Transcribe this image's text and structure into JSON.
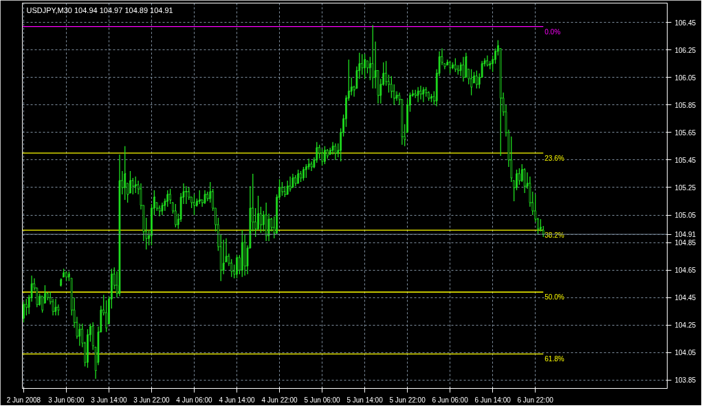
{
  "chart_data": {
    "type": "candlestick",
    "title": "USDJPY,M30  104.94 104.97 104.89 104.91",
    "color": "#20e020",
    "x": [
      "2008-06-02T22:00",
      "2008-06-02T22:30",
      "2008-06-02T23:00",
      "2008-06-02T23:30",
      "2008-06-03T00:00",
      "2008-06-03T00:30",
      "2008-06-03T01:00",
      "2008-06-03T01:30",
      "2008-06-03T02:00",
      "2008-06-03T02:30",
      "2008-06-03T03:00",
      "2008-06-03T03:30",
      "2008-06-03T04:00",
      "2008-06-03T04:30",
      "2008-06-03T05:00",
      "2008-06-03T05:30",
      "2008-06-03T06:00",
      "2008-06-03T06:30",
      "2008-06-03T07:00",
      "2008-06-03T07:30",
      "2008-06-03T08:00",
      "2008-06-03T08:30",
      "2008-06-03T09:00",
      "2008-06-03T09:30",
      "2008-06-03T10:00",
      "2008-06-03T10:30",
      "2008-06-03T11:00",
      "2008-06-03T11:30",
      "2008-06-03T12:00",
      "2008-06-03T12:30",
      "2008-06-03T13:00",
      "2008-06-03T13:30",
      "2008-06-03T14:00",
      "2008-06-03T14:30",
      "2008-06-03T15:00",
      "2008-06-03T15:30",
      "2008-06-03T16:00",
      "2008-06-03T16:30",
      "2008-06-03T17:00",
      "2008-06-03T17:30",
      "2008-06-03T18:00",
      "2008-06-03T18:30",
      "2008-06-03T19:00",
      "2008-06-03T19:30",
      "2008-06-03T20:00",
      "2008-06-03T20:30",
      "2008-06-03T21:00",
      "2008-06-03T21:30",
      "2008-06-03T22:00",
      "2008-06-03T22:30",
      "2008-06-03T23:00",
      "2008-06-03T23:30",
      "2008-06-04T00:00",
      "2008-06-04T00:30",
      "2008-06-04T01:00",
      "2008-06-04T01:30",
      "2008-06-04T02:00",
      "2008-06-04T02:30",
      "2008-06-04T03:00",
      "2008-06-04T03:30",
      "2008-06-04T04:00",
      "2008-06-04T04:30",
      "2008-06-04T05:00",
      "2008-06-04T05:30",
      "2008-06-04T06:00",
      "2008-06-04T06:30",
      "2008-06-04T07:00",
      "2008-06-04T07:30",
      "2008-06-04T08:00",
      "2008-06-04T08:30",
      "2008-06-04T09:00",
      "2008-06-04T09:30",
      "2008-06-04T10:00",
      "2008-06-04T10:30",
      "2008-06-04T11:00",
      "2008-06-04T11:30",
      "2008-06-04T12:00",
      "2008-06-04T12:30",
      "2008-06-04T13:00",
      "2008-06-04T13:30",
      "2008-06-04T14:00",
      "2008-06-04T14:30",
      "2008-06-04T15:00",
      "2008-06-04T15:30",
      "2008-06-04T16:00",
      "2008-06-04T16:30",
      "2008-06-04T17:00",
      "2008-06-04T17:30",
      "2008-06-04T18:00",
      "2008-06-04T18:30",
      "2008-06-04T19:00",
      "2008-06-04T19:30",
      "2008-06-04T20:00",
      "2008-06-04T20:30",
      "2008-06-04T21:00",
      "2008-06-04T21:30",
      "2008-06-04T22:00",
      "2008-06-04T22:30",
      "2008-06-04T23:00",
      "2008-06-04T23:30",
      "2008-06-05T00:00",
      "2008-06-05T00:30",
      "2008-06-05T01:00",
      "2008-06-05T01:30",
      "2008-06-05T02:00",
      "2008-06-05T02:30",
      "2008-06-05T03:00",
      "2008-06-05T03:30",
      "2008-06-05T04:00",
      "2008-06-05T04:30",
      "2008-06-05T05:00",
      "2008-06-05T05:30",
      "2008-06-05T06:00",
      "2008-06-05T06:30",
      "2008-06-05T07:00",
      "2008-06-05T07:30",
      "2008-06-05T08:00",
      "2008-06-05T08:30",
      "2008-06-05T09:00",
      "2008-06-05T09:30",
      "2008-06-05T10:00",
      "2008-06-05T10:30",
      "2008-06-05T11:00",
      "2008-06-05T11:30",
      "2008-06-05T12:00",
      "2008-06-05T12:30",
      "2008-06-05T13:00",
      "2008-06-05T13:30",
      "2008-06-05T14:00",
      "2008-06-05T14:30",
      "2008-06-05T15:00",
      "2008-06-05T15:30",
      "2008-06-05T16:00",
      "2008-06-05T16:30",
      "2008-06-05T17:00",
      "2008-06-05T17:30",
      "2008-06-05T18:00",
      "2008-06-05T18:30",
      "2008-06-05T19:00",
      "2008-06-05T19:30",
      "2008-06-05T20:00",
      "2008-06-05T20:30",
      "2008-06-05T21:00",
      "2008-06-05T21:30",
      "2008-06-05T22:00",
      "2008-06-05T22:30",
      "2008-06-05T23:00",
      "2008-06-05T23:30",
      "2008-06-06T00:00",
      "2008-06-06T00:30",
      "2008-06-06T01:00",
      "2008-06-06T01:30",
      "2008-06-06T02:00",
      "2008-06-06T02:30",
      "2008-06-06T03:00",
      "2008-06-06T03:30",
      "2008-06-06T04:00",
      "2008-06-06T04:30",
      "2008-06-06T05:00",
      "2008-06-06T05:30",
      "2008-06-06T06:00",
      "2008-06-06T06:30",
      "2008-06-06T07:00",
      "2008-06-06T07:30",
      "2008-06-06T08:00",
      "2008-06-06T08:30",
      "2008-06-06T09:00",
      "2008-06-06T09:30",
      "2008-06-06T10:00",
      "2008-06-06T10:30",
      "2008-06-06T11:00",
      "2008-06-06T11:30",
      "2008-06-06T12:00",
      "2008-06-06T12:30",
      "2008-06-06T13:00",
      "2008-06-06T13:30",
      "2008-06-06T14:00",
      "2008-06-06T14:30",
      "2008-06-06T15:00",
      "2008-06-06T15:30",
      "2008-06-06T16:00",
      "2008-06-06T16:30",
      "2008-06-06T17:00",
      "2008-06-06T17:30",
      "2008-06-06T18:00",
      "2008-06-06T18:30",
      "2008-06-06T19:00",
      "2008-06-06T19:30",
      "2008-06-06T20:00",
      "2008-06-06T20:30",
      "2008-06-06T21:00",
      "2008-06-06T21:30",
      "2008-06-06T22:00",
      "2008-06-06T22:30",
      "2008-06-06T23:00",
      "2008-06-06T23:30"
    ],
    "ohlc": [
      [
        104.3,
        104.42,
        104.27,
        104.4
      ],
      [
        104.4,
        104.44,
        104.32,
        104.38
      ],
      [
        104.38,
        104.47,
        104.33,
        104.45
      ],
      [
        104.45,
        104.61,
        104.42,
        104.55
      ],
      [
        104.55,
        104.59,
        104.5,
        104.52
      ],
      [
        104.52,
        104.52,
        104.38,
        104.4
      ],
      [
        104.4,
        104.48,
        104.39,
        104.46
      ],
      [
        104.46,
        104.46,
        104.34,
        104.36
      ],
      [
        104.41,
        104.54,
        104.41,
        104.48
      ],
      [
        104.48,
        104.49,
        104.43,
        104.45
      ],
      [
        104.45,
        104.49,
        104.4,
        104.42
      ],
      [
        104.42,
        104.44,
        104.32,
        104.35
      ],
      [
        104.35,
        104.44,
        104.32,
        104.38
      ],
      [
        104.38,
        104.4,
        104.32,
        104.36
      ],
      [
        104.54,
        104.59,
        104.53,
        104.58
      ],
      [
        104.6,
        104.66,
        104.6,
        104.63
      ],
      [
        104.63,
        104.64,
        104.57,
        104.6
      ],
      [
        104.6,
        104.64,
        104.57,
        104.62
      ],
      [
        104.59,
        104.59,
        104.32,
        104.36
      ],
      [
        104.36,
        104.45,
        104.23,
        104.27
      ],
      [
        104.27,
        104.31,
        104.15,
        104.17
      ],
      [
        104.17,
        104.26,
        104.1,
        104.22
      ],
      [
        104.22,
        104.26,
        104.09,
        104.12
      ],
      [
        104.12,
        104.13,
        103.95,
        103.98
      ],
      [
        103.98,
        104.22,
        103.94,
        104.18
      ],
      [
        104.18,
        104.26,
        104.13,
        104.24
      ],
      [
        104.24,
        104.27,
        104.07,
        104.1
      ],
      [
        104.09,
        104.09,
        103.86,
        103.92
      ],
      [
        103.98,
        104.24,
        103.96,
        104.2
      ],
      [
        104.2,
        104.39,
        104.2,
        104.36
      ],
      [
        104.36,
        104.47,
        104.32,
        104.34
      ],
      [
        104.34,
        104.43,
        104.2,
        104.23
      ],
      [
        104.26,
        104.46,
        104.26,
        104.44
      ],
      [
        104.44,
        104.66,
        104.37,
        104.62
      ],
      [
        104.62,
        104.67,
        104.51,
        104.54
      ],
      [
        104.54,
        104.64,
        104.45,
        104.48
      ],
      [
        104.48,
        105.49,
        104.46,
        105.3
      ],
      [
        105.3,
        105.37,
        105.2,
        105.25
      ],
      [
        105.25,
        105.55,
        105.16,
        105.35
      ],
      [
        105.28,
        105.28,
        105.14,
        105.2
      ],
      [
        105.21,
        105.37,
        105.21,
        105.3
      ],
      [
        105.3,
        105.32,
        105.2,
        105.26
      ],
      [
        105.26,
        105.33,
        105.21,
        105.27
      ],
      [
        105.27,
        105.3,
        105.2,
        105.24
      ],
      [
        105.24,
        105.28,
        105.09,
        105.12
      ],
      [
        105.12,
        105.12,
        104.86,
        104.93
      ],
      [
        104.93,
        105.03,
        104.8,
        104.88
      ],
      [
        104.88,
        104.94,
        104.83,
        104.9
      ],
      [
        104.9,
        105.13,
        104.83,
        105.1
      ],
      [
        105.1,
        105.23,
        105.05,
        105.18
      ],
      [
        105.14,
        105.14,
        105.08,
        105.1
      ],
      [
        105.1,
        105.12,
        105.04,
        105.08
      ],
      [
        105.08,
        105.14,
        105.05,
        105.12
      ],
      [
        105.12,
        105.17,
        105.08,
        105.15
      ],
      [
        105.15,
        105.23,
        105.11,
        105.2
      ],
      [
        105.2,
        105.24,
        105.13,
        105.16
      ],
      [
        105.14,
        105.14,
        105.06,
        105.08
      ],
      [
        105.08,
        105.13,
        104.96,
        104.98
      ],
      [
        104.98,
        105.06,
        104.95,
        105.02
      ],
      [
        105.02,
        105.21,
        105.0,
        105.18
      ],
      [
        105.18,
        105.28,
        105.13,
        105.22
      ],
      [
        105.22,
        105.26,
        105.13,
        105.22
      ],
      [
        105.22,
        105.25,
        105.16,
        105.18
      ],
      [
        105.18,
        105.18,
        105.1,
        105.14
      ],
      [
        105.14,
        105.2,
        105.05,
        105.12
      ],
      [
        105.12,
        105.17,
        105.11,
        105.15
      ],
      [
        105.15,
        105.23,
        105.13,
        105.16
      ],
      [
        105.16,
        105.16,
        105.11,
        105.14
      ],
      [
        105.14,
        105.23,
        105.13,
        105.2
      ],
      [
        105.2,
        105.22,
        105.15,
        105.17
      ],
      [
        105.17,
        105.29,
        105.14,
        105.22
      ],
      [
        105.22,
        105.24,
        105.08,
        105.1
      ],
      [
        105.1,
        105.1,
        104.93,
        104.98
      ],
      [
        104.98,
        105.03,
        104.79,
        104.82
      ],
      [
        104.82,
        104.91,
        104.57,
        104.65
      ],
      [
        104.65,
        104.87,
        104.62,
        104.7
      ],
      [
        104.71,
        104.88,
        104.71,
        104.75
      ],
      [
        104.75,
        104.77,
        104.68,
        104.7
      ],
      [
        104.7,
        104.73,
        104.6,
        104.64
      ],
      [
        104.64,
        104.69,
        104.59,
        104.62
      ],
      [
        104.62,
        104.76,
        104.59,
        104.74
      ],
      [
        104.74,
        104.76,
        104.62,
        104.65
      ],
      [
        104.65,
        104.94,
        104.6,
        104.85
      ],
      [
        104.85,
        104.91,
        104.61,
        104.68
      ],
      [
        104.68,
        104.83,
        104.62,
        104.81
      ],
      [
        104.81,
        105.26,
        104.81,
        105.1
      ],
      [
        105.1,
        105.35,
        104.93,
        105.0
      ],
      [
        105.0,
        105.1,
        104.89,
        104.95
      ],
      [
        104.95,
        105.19,
        104.94,
        105.06
      ],
      [
        105.06,
        105.11,
        104.92,
        104.98
      ],
      [
        104.98,
        105.08,
        104.93,
        105.05
      ],
      [
        105.05,
        105.14,
        104.86,
        104.9
      ],
      [
        104.9,
        105.06,
        104.86,
        105.02
      ],
      [
        105.02,
        105.03,
        104.93,
        104.96
      ],
      [
        104.96,
        105.04,
        104.88,
        104.92
      ],
      [
        104.92,
        105.2,
        104.91,
        105.18
      ],
      [
        105.18,
        105.31,
        105.16,
        105.25
      ],
      [
        105.25,
        105.29,
        105.19,
        105.22
      ],
      [
        105.22,
        105.26,
        105.18,
        105.2
      ],
      [
        105.2,
        105.3,
        105.2,
        105.26
      ],
      [
        105.26,
        105.33,
        105.22,
        105.24
      ],
      [
        105.25,
        105.35,
        105.25,
        105.32
      ],
      [
        105.32,
        105.34,
        105.26,
        105.28
      ],
      [
        105.28,
        105.38,
        105.28,
        105.35
      ],
      [
        105.35,
        105.37,
        105.29,
        105.32
      ],
      [
        105.32,
        105.4,
        105.3,
        105.38
      ],
      [
        105.38,
        105.42,
        105.32,
        105.4
      ],
      [
        105.4,
        105.46,
        105.38,
        105.42
      ],
      [
        105.42,
        105.44,
        105.37,
        105.4
      ],
      [
        105.4,
        105.47,
        105.39,
        105.45
      ],
      [
        105.45,
        105.58,
        105.43,
        105.54
      ],
      [
        105.54,
        105.56,
        105.46,
        105.5
      ],
      [
        105.5,
        105.53,
        105.41,
        105.44
      ],
      [
        105.44,
        105.55,
        105.42,
        105.52
      ],
      [
        105.52,
        105.53,
        105.46,
        105.48
      ],
      [
        105.49,
        105.54,
        105.49,
        105.52
      ],
      [
        105.52,
        105.58,
        105.49,
        105.55
      ],
      [
        105.55,
        105.57,
        105.45,
        105.5
      ],
      [
        105.5,
        105.57,
        105.47,
        105.52
      ],
      [
        105.52,
        105.68,
        105.44,
        105.65
      ],
      [
        105.65,
        105.78,
        105.62,
        105.75
      ],
      [
        105.75,
        105.92,
        105.69,
        105.9
      ],
      [
        105.9,
        106.18,
        105.88,
        105.95
      ],
      [
        105.95,
        106.05,
        105.92,
        105.98
      ],
      [
        105.98,
        105.99,
        105.91,
        105.96
      ],
      [
        105.97,
        106.13,
        105.97,
        106.1
      ],
      [
        106.1,
        106.23,
        106.04,
        106.15
      ],
      [
        106.15,
        106.22,
        106.07,
        106.12
      ],
      [
        106.12,
        106.22,
        106.04,
        106.18
      ],
      [
        106.17,
        106.17,
        106.08,
        106.12
      ],
      [
        106.12,
        106.2,
        106.03,
        106.15
      ],
      [
        106.15,
        106.43,
        105.97,
        106.05
      ],
      [
        106.05,
        106.31,
        105.97,
        106.1
      ],
      [
        106.1,
        106.1,
        105.86,
        105.92
      ],
      [
        105.92,
        106.04,
        105.86,
        106.0
      ],
      [
        106.0,
        106.16,
        105.99,
        106.08
      ],
      [
        106.08,
        106.17,
        105.99,
        106.02
      ],
      [
        106.02,
        106.07,
        105.94,
        106.0
      ],
      [
        106.0,
        106.06,
        105.9,
        105.95
      ],
      [
        105.95,
        106.0,
        105.85,
        105.9
      ],
      [
        105.9,
        105.95,
        105.88,
        105.92
      ],
      [
        105.92,
        105.94,
        105.85,
        105.89
      ],
      [
        105.89,
        105.89,
        105.56,
        105.62
      ],
      [
        105.62,
        105.71,
        105.55,
        105.6
      ],
      [
        105.65,
        105.89,
        105.65,
        105.85
      ],
      [
        105.85,
        105.94,
        105.8,
        105.92
      ],
      [
        105.92,
        105.96,
        105.91,
        105.93
      ],
      [
        105.93,
        105.96,
        105.9,
        105.92
      ],
      [
        105.92,
        105.98,
        105.87,
        105.95
      ],
      [
        105.95,
        105.99,
        105.89,
        105.93
      ],
      [
        105.93,
        105.98,
        105.87,
        105.96
      ],
      [
        105.96,
        105.98,
        105.91,
        105.94
      ],
      [
        105.94,
        105.95,
        105.88,
        105.9
      ],
      [
        105.9,
        105.93,
        105.87,
        105.91
      ],
      [
        105.91,
        105.95,
        105.85,
        105.88
      ],
      [
        105.88,
        106.11,
        105.84,
        106.08
      ],
      [
        106.08,
        106.24,
        106.06,
        106.2
      ],
      [
        106.2,
        106.26,
        106.14,
        106.16
      ],
      [
        106.15,
        106.15,
        106.11,
        106.13
      ],
      [
        106.14,
        106.18,
        106.14,
        106.16
      ],
      [
        106.16,
        106.17,
        106.08,
        106.12
      ],
      [
        106.12,
        106.16,
        106.11,
        106.14
      ],
      [
        106.14,
        106.19,
        106.09,
        106.11
      ],
      [
        106.11,
        106.14,
        106.07,
        106.1
      ],
      [
        106.1,
        106.16,
        106.06,
        106.14
      ],
      [
        106.14,
        106.2,
        106.02,
        106.05
      ],
      [
        106.05,
        106.23,
        106.05,
        106.2
      ],
      [
        106.11,
        106.11,
        106.0,
        106.04
      ],
      [
        106.04,
        106.11,
        105.92,
        105.98
      ],
      [
        106.01,
        106.09,
        106.01,
        106.06
      ],
      [
        106.06,
        106.1,
        105.97,
        106.0
      ],
      [
        106.0,
        106.08,
        105.97,
        106.05
      ],
      [
        106.05,
        106.17,
        106.05,
        106.15
      ],
      [
        106.15,
        106.19,
        106.13,
        106.17
      ],
      [
        106.17,
        106.21,
        106.13,
        106.14
      ],
      [
        106.14,
        106.17,
        106.11,
        106.15
      ],
      [
        106.15,
        106.21,
        106.09,
        106.18
      ],
      [
        106.18,
        106.26,
        106.15,
        106.24
      ],
      [
        106.24,
        106.32,
        106.21,
        106.28
      ],
      [
        106.26,
        106.26,
        105.48,
        105.9
      ],
      [
        105.9,
        105.94,
        105.77,
        105.8
      ],
      [
        105.8,
        105.85,
        105.62,
        105.65
      ],
      [
        105.65,
        105.67,
        105.4,
        105.45
      ],
      [
        105.45,
        105.62,
        105.29,
        105.32
      ],
      [
        105.3,
        105.3,
        105.15,
        105.25
      ],
      [
        105.25,
        105.38,
        105.23,
        105.35
      ],
      [
        105.35,
        105.39,
        105.27,
        105.3
      ],
      [
        105.3,
        105.42,
        105.29,
        105.38
      ],
      [
        105.38,
        105.39,
        105.21,
        105.26
      ],
      [
        105.26,
        105.36,
        105.24,
        105.28
      ],
      [
        105.28,
        105.33,
        105.11,
        105.14
      ],
      [
        105.14,
        105.22,
        105.05,
        105.08
      ],
      [
        105.08,
        105.2,
        105.0,
        105.02
      ],
      [
        105.02,
        105.03,
        104.91,
        104.95
      ],
      [
        104.95,
        105.02,
        104.93,
        104.96
      ],
      [
        104.94,
        104.97,
        104.89,
        104.91
      ]
    ],
    "xlim": [
      "2008-06-02T21:45",
      "2008-06-07T22:45"
    ],
    "xticks": [
      {
        "value": "2008-06-02T22:00",
        "label": "2 Jun 2008"
      },
      {
        "value": "2008-06-03T06:00",
        "label": "3 Jun 06:00"
      },
      {
        "value": "2008-06-03T14:00",
        "label": "3 Jun 14:00"
      },
      {
        "value": "2008-06-03T22:00",
        "label": "3 Jun 22:00"
      },
      {
        "value": "2008-06-04T06:00",
        "label": "4 Jun 06:00"
      },
      {
        "value": "2008-06-04T14:00",
        "label": "4 Jun 14:00"
      },
      {
        "value": "2008-06-04T22:00",
        "label": "4 Jun 22:00"
      },
      {
        "value": "2008-06-05T06:00",
        "label": "5 Jun 06:00"
      },
      {
        "value": "2008-06-05T14:00",
        "label": "5 Jun 14:00"
      },
      {
        "value": "2008-06-05T22:00",
        "label": "5 Jun 22:00"
      },
      {
        "value": "2008-06-06T06:00",
        "label": "6 Jun 06:00"
      },
      {
        "value": "2008-06-06T14:00",
        "label": "6 Jun 14:00"
      },
      {
        "value": "2008-06-06T22:00",
        "label": "6 Jun 22:00"
      }
    ],
    "ylim": [
      103.79,
      106.59
    ],
    "yticks": [
      106.45,
      106.25,
      106.05,
      105.85,
      105.65,
      105.45,
      105.25,
      105.05,
      104.91,
      104.85,
      104.65,
      104.45,
      104.25,
      104.05,
      103.85
    ],
    "ref_lines": [
      {
        "axis": "y",
        "value": 106.42,
        "color": "#ff00ff"
      },
      {
        "axis": "y",
        "value": 105.5,
        "color": "#ffff00"
      },
      {
        "axis": "y",
        "value": 104.94,
        "color": "#ffff00"
      },
      {
        "axis": "y",
        "value": 104.49,
        "color": "#ffff00"
      },
      {
        "axis": "y",
        "value": 104.04,
        "color": "#ffff00"
      },
      {
        "axis": "y",
        "value": 104.91,
        "color": "#778899"
      }
    ],
    "annotations": [
      {
        "text": "0.0%",
        "x": "2008-06-06T23:30",
        "y": 106.42
      },
      {
        "text": "23.6%",
        "x": "2008-06-06T23:30",
        "y": 105.5
      },
      {
        "text": "38.2%",
        "x": "2008-06-06T23:30",
        "y": 104.94
      },
      {
        "text": "50.0%",
        "x": "2008-06-06T23:30",
        "y": 104.49
      },
      {
        "text": "61.8%",
        "x": "2008-06-06T23:30",
        "y": 104.04
      }
    ],
    "grid": true
  }
}
